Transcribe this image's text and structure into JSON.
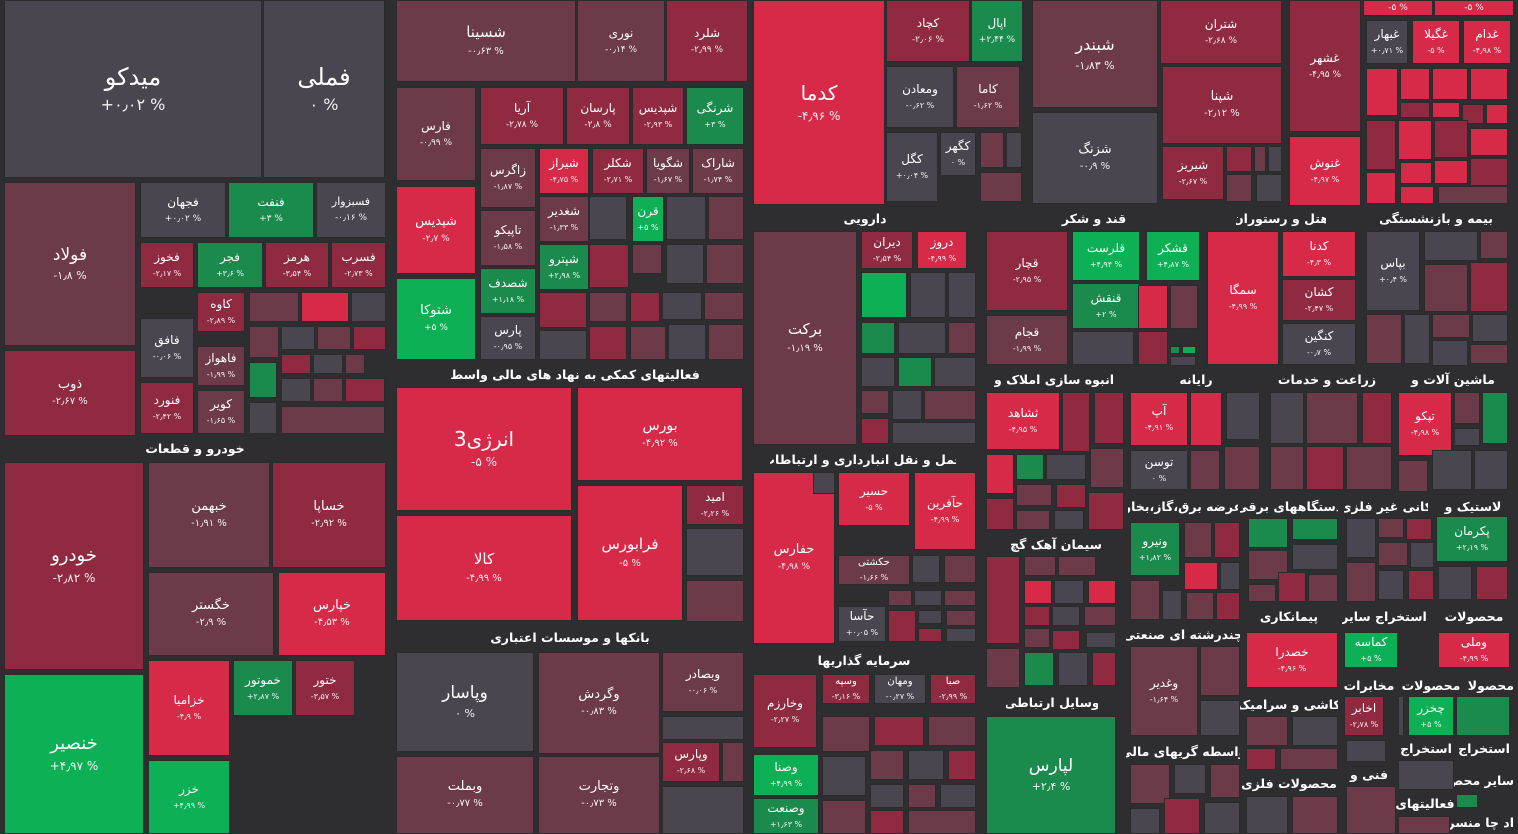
{
  "colors": {
    "background": "#2e2e30",
    "neutral": "#4a4650",
    "slightly_negative": "#6d3a4a",
    "negative": "#8f2a40",
    "strong_negative": "#d62a48",
    "positive": "#1b8a4d",
    "strong_positive": "#0db054"
  },
  "tiles": [
    {
      "symbol": "میدکو",
      "change": "+۰٫۰۲ %",
      "color": "#4a4650"
    },
    {
      "symbol": "فملی",
      "change": "۰ %",
      "color": "#4a4650"
    },
    {
      "symbol": "شسینا",
      "change": "-۰٫۶۳ %",
      "color": "#6d3a4a"
    },
    {
      "symbol": "نوری",
      "change": "-۰٫۱۴ %",
      "color": "#6d3a4a"
    },
    {
      "symbol": "شلرد",
      "change": "-۲٫۹۹ %",
      "color": "#8f2a40"
    },
    {
      "symbol": "کدما",
      "change": "-۴٫۹۶ %",
      "color": "#d62a48"
    },
    {
      "symbol": "کچاد",
      "change": "-۲٫۰۶ %",
      "color": "#8f2a40"
    },
    {
      "symbol": "اپال",
      "change": "+۲٫۴۴ %",
      "color": "#1b8a4d"
    },
    {
      "symbol": "شبندر",
      "change": "-۱٫۸۳ %",
      "color": "#6d3a4a"
    },
    {
      "symbol": "شتران",
      "change": "-۲٫۶۸ %",
      "color": "#8f2a40"
    },
    {
      "symbol": "غشهر",
      "change": "-۴٫۹۵ %",
      "color": "#8f2a40"
    },
    {
      "symbol": "-۵ %",
      "change": "",
      "color": "#d62a48"
    },
    {
      "symbol": "-۵ %",
      "change": "",
      "color": "#d62a48"
    },
    {
      "symbol": "فولاد",
      "change": "-۱٫۸ %",
      "color": "#6d3a4a"
    },
    {
      "symbol": "فجهان",
      "change": "+۰٫۰۲ %",
      "color": "#4a4650"
    },
    {
      "symbol": "فنفت",
      "change": "+۳ %",
      "color": "#1b8a4d"
    },
    {
      "symbol": "فسبزوار",
      "change": "-۰٫۱۶ %",
      "color": "#4a4650"
    },
    {
      "symbol": "فارس",
      "change": "-۰٫۹۹ %",
      "color": "#6d3a4a"
    },
    {
      "symbol": "آریا",
      "change": "-۲٫۷۸ %",
      "color": "#8f2a40"
    },
    {
      "symbol": "پارسان",
      "change": "-۲٫۸ %",
      "color": "#8f2a40"
    },
    {
      "symbol": "شپدیس",
      "change": "-۲٫۷ %",
      "color": "#d62a48"
    },
    {
      "symbol": "شتوکا",
      "change": "+۵ %",
      "color": "#0db054"
    },
    {
      "symbol": "خودرو",
      "change": "-۲٫۸۲ %",
      "color": "#8f2a40"
    },
    {
      "symbol": "خنصیر",
      "change": "+۴٫۹۷ %",
      "color": "#0db054"
    },
    {
      "symbol": "انرژی3",
      "change": "-۵ %",
      "color": "#d62a48"
    },
    {
      "symbol": "بورس",
      "change": "-۴٫۹۲ %",
      "color": "#d62a48"
    },
    {
      "symbol": "کالا",
      "change": "-۴٫۹۹ %",
      "color": "#d62a48"
    },
    {
      "symbol": "فرابورس",
      "change": "-۵ %",
      "color": "#d62a48"
    },
    {
      "symbol": "برکت",
      "change": "-۱٫۱۹ %",
      "color": "#6d3a4a"
    },
    {
      "symbol": "حفارس",
      "change": "-۴٫۹۸ %",
      "color": "#d62a48"
    },
    {
      "symbol": "وپاسار",
      "change": "۰ %",
      "color": "#4a4650"
    },
    {
      "symbol": "لپارس",
      "change": "+۲٫۴ %",
      "color": "#1b8a4d"
    }
  ],
  "sectors": [
    {
      "label": "خودرو و قطعات"
    },
    {
      "label": "فعالیتهای کمکی به نهاد های مالی واسط"
    },
    {
      "label": "بانکها و موسسات اعتباری"
    },
    {
      "label": "دارویی"
    },
    {
      "label": "قند و شکر"
    },
    {
      "label": "هتل و رستوران"
    },
    {
      "label": "بیمه و بازنشستگی"
    },
    {
      "label": "انبوه سازی املاک و"
    },
    {
      "label": "رایانه"
    },
    {
      "label": "زراعت و خدمات"
    },
    {
      "label": "ماشین آلات و"
    },
    {
      "label": "حمل و نقل انبارداری و ارتباطات"
    },
    {
      "label": "عرضه برق،گاز،بخار"
    },
    {
      "label": "دستگاههای برقی"
    },
    {
      "label": "کانی غیر فلزی"
    },
    {
      "label": "لاستیک و"
    },
    {
      "label": "سیمان آهک گچ"
    },
    {
      "label": "پیمانکاری"
    },
    {
      "label": "استخراج سایر"
    },
    {
      "label": "محصولات"
    },
    {
      "label": "چندرشته ای صنعتی"
    },
    {
      "label": "سرمایه گذاریها"
    },
    {
      "label": "مخابرات"
    },
    {
      "label": "محصولات"
    },
    {
      "label": "محصولا"
    },
    {
      "label": "وسایل ارتباطی"
    },
    {
      "label": "کاشی و سرامیک"
    },
    {
      "label": "استخراج"
    },
    {
      "label": "استخراج"
    },
    {
      "label": "واسطه گریهای مالی"
    },
    {
      "label": "فنی و"
    },
    {
      "label": "سایر محص"
    },
    {
      "label": "محصولات فلزی"
    },
    {
      "label": "فعالیتهای"
    },
    {
      "label": "اد چا منسر"
    }
  ],
  "small_tiles": [
    {
      "symbol": "فخوز",
      "change": "-۲٫۱۷ %",
      "color": "#8f2a40"
    },
    {
      "symbol": "فجر",
      "change": "+۳٫۶ %",
      "color": "#1b8a4d"
    },
    {
      "symbol": "هرمز",
      "change": "-۳٫۵۴ %",
      "color": "#8f2a40"
    },
    {
      "symbol": "فسرب",
      "change": "-۲٫۷۳ %",
      "color": "#8f2a40"
    },
    {
      "symbol": "کاوه",
      "change": "-۲٫۸۹ %",
      "color": "#8f2a40"
    },
    {
      "symbol": "فافق",
      "change": "-۰٫۰۶ %",
      "color": "#4a4650"
    },
    {
      "symbol": "فاهواز",
      "change": "-۱٫۹۹ %",
      "color": "#6d3a4a"
    },
    {
      "symbol": "ذوب",
      "change": "-۲٫۶۷ %",
      "color": "#8f2a40"
    },
    {
      "symbol": "فنورد",
      "change": "-۲٫۴۲ %",
      "color": "#8f2a40"
    },
    {
      "symbol": "کویر",
      "change": "-۱٫۶۵ %",
      "color": "#6d3a4a"
    },
    {
      "symbol": "شپدیس",
      "change": "-۲٫۹۳ %",
      "color": "#8f2a40"
    },
    {
      "symbol": "شرنگی",
      "change": "+۳ %",
      "color": "#1b8a4d"
    },
    {
      "symbol": "زاگرس",
      "change": "-۱٫۸۷ %",
      "color": "#6d3a4a"
    },
    {
      "symbol": "شیراز",
      "change": "-۴٫۷۵ %",
      "color": "#d62a48"
    },
    {
      "symbol": "شکلر",
      "change": "-۲٫۷۱ %",
      "color": "#8f2a40"
    },
    {
      "symbol": "شگویا",
      "change": "-۱٫۶۷ %",
      "color": "#6d3a4a"
    },
    {
      "symbol": "شاراک",
      "change": "-۱٫۷۴ %",
      "color": "#6d3a4a"
    },
    {
      "symbol": "تاپیکو",
      "change": "-۱٫۵۸ %",
      "color": "#6d3a4a"
    },
    {
      "symbol": "شغدیر",
      "change": "-۱٫۳۳ %",
      "color": "#6d3a4a"
    },
    {
      "symbol": "قرن",
      "change": "+۵ %",
      "color": "#0db054"
    },
    {
      "symbol": "شصدف",
      "change": "+۱٫۱۸ %",
      "color": "#1b8a4d"
    },
    {
      "symbol": "شپترو",
      "change": "+۲٫۹۸ %",
      "color": "#1b8a4d"
    },
    {
      "symbol": "پارس",
      "change": "-۰٫۹۵ %",
      "color": "#4a4650"
    },
    {
      "symbol": "خبهمن",
      "change": "-۱٫۹۱ %",
      "color": "#6d3a4a"
    },
    {
      "symbol": "خساپا",
      "change": "-۲٫۹۲ %",
      "color": "#8f2a40"
    },
    {
      "symbol": "خگستر",
      "change": "-۲٫۹ %",
      "color": "#6d3a4a"
    },
    {
      "symbol": "خپارس",
      "change": "-۴٫۵۳ %",
      "color": "#d62a48"
    },
    {
      "symbol": "خزامیا",
      "change": "-۴٫۹ %",
      "color": "#d62a48"
    },
    {
      "symbol": "خموتور",
      "change": "+۲٫۸۷ %",
      "color": "#1b8a4d"
    },
    {
      "symbol": "ختور",
      "change": "-۳٫۵۷ %",
      "color": "#8f2a40"
    },
    {
      "symbol": "خزر",
      "change": "+۴٫۹۹ %",
      "color": "#0db054"
    },
    {
      "symbol": "امید",
      "change": "-۲٫۲۶ %",
      "color": "#8f2a40"
    },
    {
      "symbol": "ومعادن",
      "change": "-۰٫۶۲ %",
      "color": "#4a4650"
    },
    {
      "symbol": "کاما",
      "change": "-۱٫۶۲ %",
      "color": "#6d3a4a"
    },
    {
      "symbol": "کگل",
      "change": "+۰٫۰۴ %",
      "color": "#4a4650"
    },
    {
      "symbol": "کگهر",
      "change": "۰ %",
      "color": "#4a4650"
    },
    {
      "symbol": "شزنگ",
      "change": "-۰٫۹ %",
      "color": "#4a4650"
    },
    {
      "symbol": "شپنا",
      "change": "-۲٫۱۲ %",
      "color": "#8f2a40"
    },
    {
      "symbol": "شیریز",
      "change": "-۲٫۶۷ %",
      "color": "#8f2a40"
    },
    {
      "symbol": "غنوش",
      "change": "-۴٫۹۷ %",
      "color": "#d62a48"
    },
    {
      "symbol": "غبهار",
      "change": "+۰٫۷۱ %",
      "color": "#4a4650"
    },
    {
      "symbol": "غگیلا",
      "change": "-۵ %",
      "color": "#d62a48"
    },
    {
      "symbol": "غدام",
      "change": "-۴٫۹۸ %",
      "color": "#d62a48"
    },
    {
      "symbol": "دیران",
      "change": "-۲٫۵۴ %",
      "color": "#8f2a40"
    },
    {
      "symbol": "دروز",
      "change": "-۴٫۹۹ %",
      "color": "#d62a48"
    },
    {
      "symbol": "قچار",
      "change": "-۲٫۹۵ %",
      "color": "#8f2a40"
    },
    {
      "symbol": "قلرست",
      "change": "+۴٫۹۴ %",
      "color": "#0db054"
    },
    {
      "symbol": "قشکر",
      "change": "+۴٫۸۷ %",
      "color": "#0db054"
    },
    {
      "symbol": "قنقش",
      "change": "+۲ %",
      "color": "#1b8a4d"
    },
    {
      "symbol": "قجام",
      "change": "-۱٫۹۹ %",
      "color": "#6d3a4a"
    },
    {
      "symbol": "سمگا",
      "change": "-۴٫۹۹ %",
      "color": "#d62a48"
    },
    {
      "symbol": "کدنا",
      "change": "-۴٫۳ %",
      "color": "#d62a48"
    },
    {
      "symbol": "کشان",
      "change": "-۲٫۴۷ %",
      "color": "#8f2a40"
    },
    {
      "symbol": "کنگین",
      "change": "-۰٫۷ %",
      "color": "#4a4650"
    },
    {
      "symbol": "بپاس",
      "change": "+۰٫۴ %",
      "color": "#4a4650"
    },
    {
      "symbol": "ثشاهد",
      "change": "-۴٫۹۵ %",
      "color": "#d62a48"
    },
    {
      "symbol": "آپ",
      "change": "-۴٫۹۱ %",
      "color": "#d62a48"
    },
    {
      "symbol": "توسن",
      "change": "۰ %",
      "color": "#4a4650"
    },
    {
      "symbol": "تپکو",
      "change": "-۴٫۹۸ %",
      "color": "#d62a48"
    },
    {
      "symbol": "حسیر",
      "change": "-۵ %",
      "color": "#d62a48"
    },
    {
      "symbol": "حآفرین",
      "change": "-۴٫۹۹ %",
      "color": "#d62a48"
    },
    {
      "symbol": "حکشتی",
      "change": "-۱٫۶۶ %",
      "color": "#6d3a4a"
    },
    {
      "symbol": "حآسا",
      "change": "+۰٫۰۵ %",
      "color": "#4a4650"
    },
    {
      "symbol": "ونیرو",
      "change": "+۱٫۸۲ %",
      "color": "#1b8a4d"
    },
    {
      "symbol": "پکرمان",
      "change": "+۲٫۱۹ %",
      "color": "#1b8a4d"
    },
    {
      "symbol": "وگردش",
      "change": "-۰٫۸۳ %",
      "color": "#6d3a4a"
    },
    {
      "symbol": "وبصادر",
      "change": "-۰٫۰۶ %",
      "color": "#6d3a4a"
    },
    {
      "symbol": "وپارس",
      "change": "-۲٫۶۸ %",
      "color": "#8f2a40"
    },
    {
      "symbol": "وبملت",
      "change": "-۰٫۷۷ %",
      "color": "#6d3a4a"
    },
    {
      "symbol": "وتجارت",
      "change": "-۰٫۷۳ %",
      "color": "#6d3a4a"
    },
    {
      "symbol": "وخارزم",
      "change": "-۲٫۲۷ %",
      "color": "#8f2a40"
    },
    {
      "symbol": "وسپه",
      "change": "-۳٫۱۶ %",
      "color": "#8f2a40"
    },
    {
      "symbol": "ومهان",
      "change": "-۰٫۲۷ %",
      "color": "#4a4650"
    },
    {
      "symbol": "صبا",
      "change": "-۲٫۹۹ %",
      "color": "#8f2a40"
    },
    {
      "symbol": "وصنا",
      "change": "+۴٫۹۹ %",
      "color": "#0db054"
    },
    {
      "symbol": "وصنعت",
      "change": "+۱٫۶۳ %",
      "color": "#1b8a4d"
    },
    {
      "symbol": "خصدرا",
      "change": "-۴٫۹۶ %",
      "color": "#d62a48"
    },
    {
      "symbol": "کماسه",
      "change": "+۵ %",
      "color": "#0db054"
    },
    {
      "symbol": "وملی",
      "change": "-۴٫۹۹ %",
      "color": "#d62a48"
    },
    {
      "symbol": "وغدیر",
      "change": "-۱٫۶۴ %",
      "color": "#6d3a4a"
    },
    {
      "symbol": "اخابر",
      "change": "-۲٫۷۸ %",
      "color": "#8f2a40"
    },
    {
      "symbol": "چخزر",
      "change": "+۵ %",
      "color": "#0db054"
    }
  ]
}
